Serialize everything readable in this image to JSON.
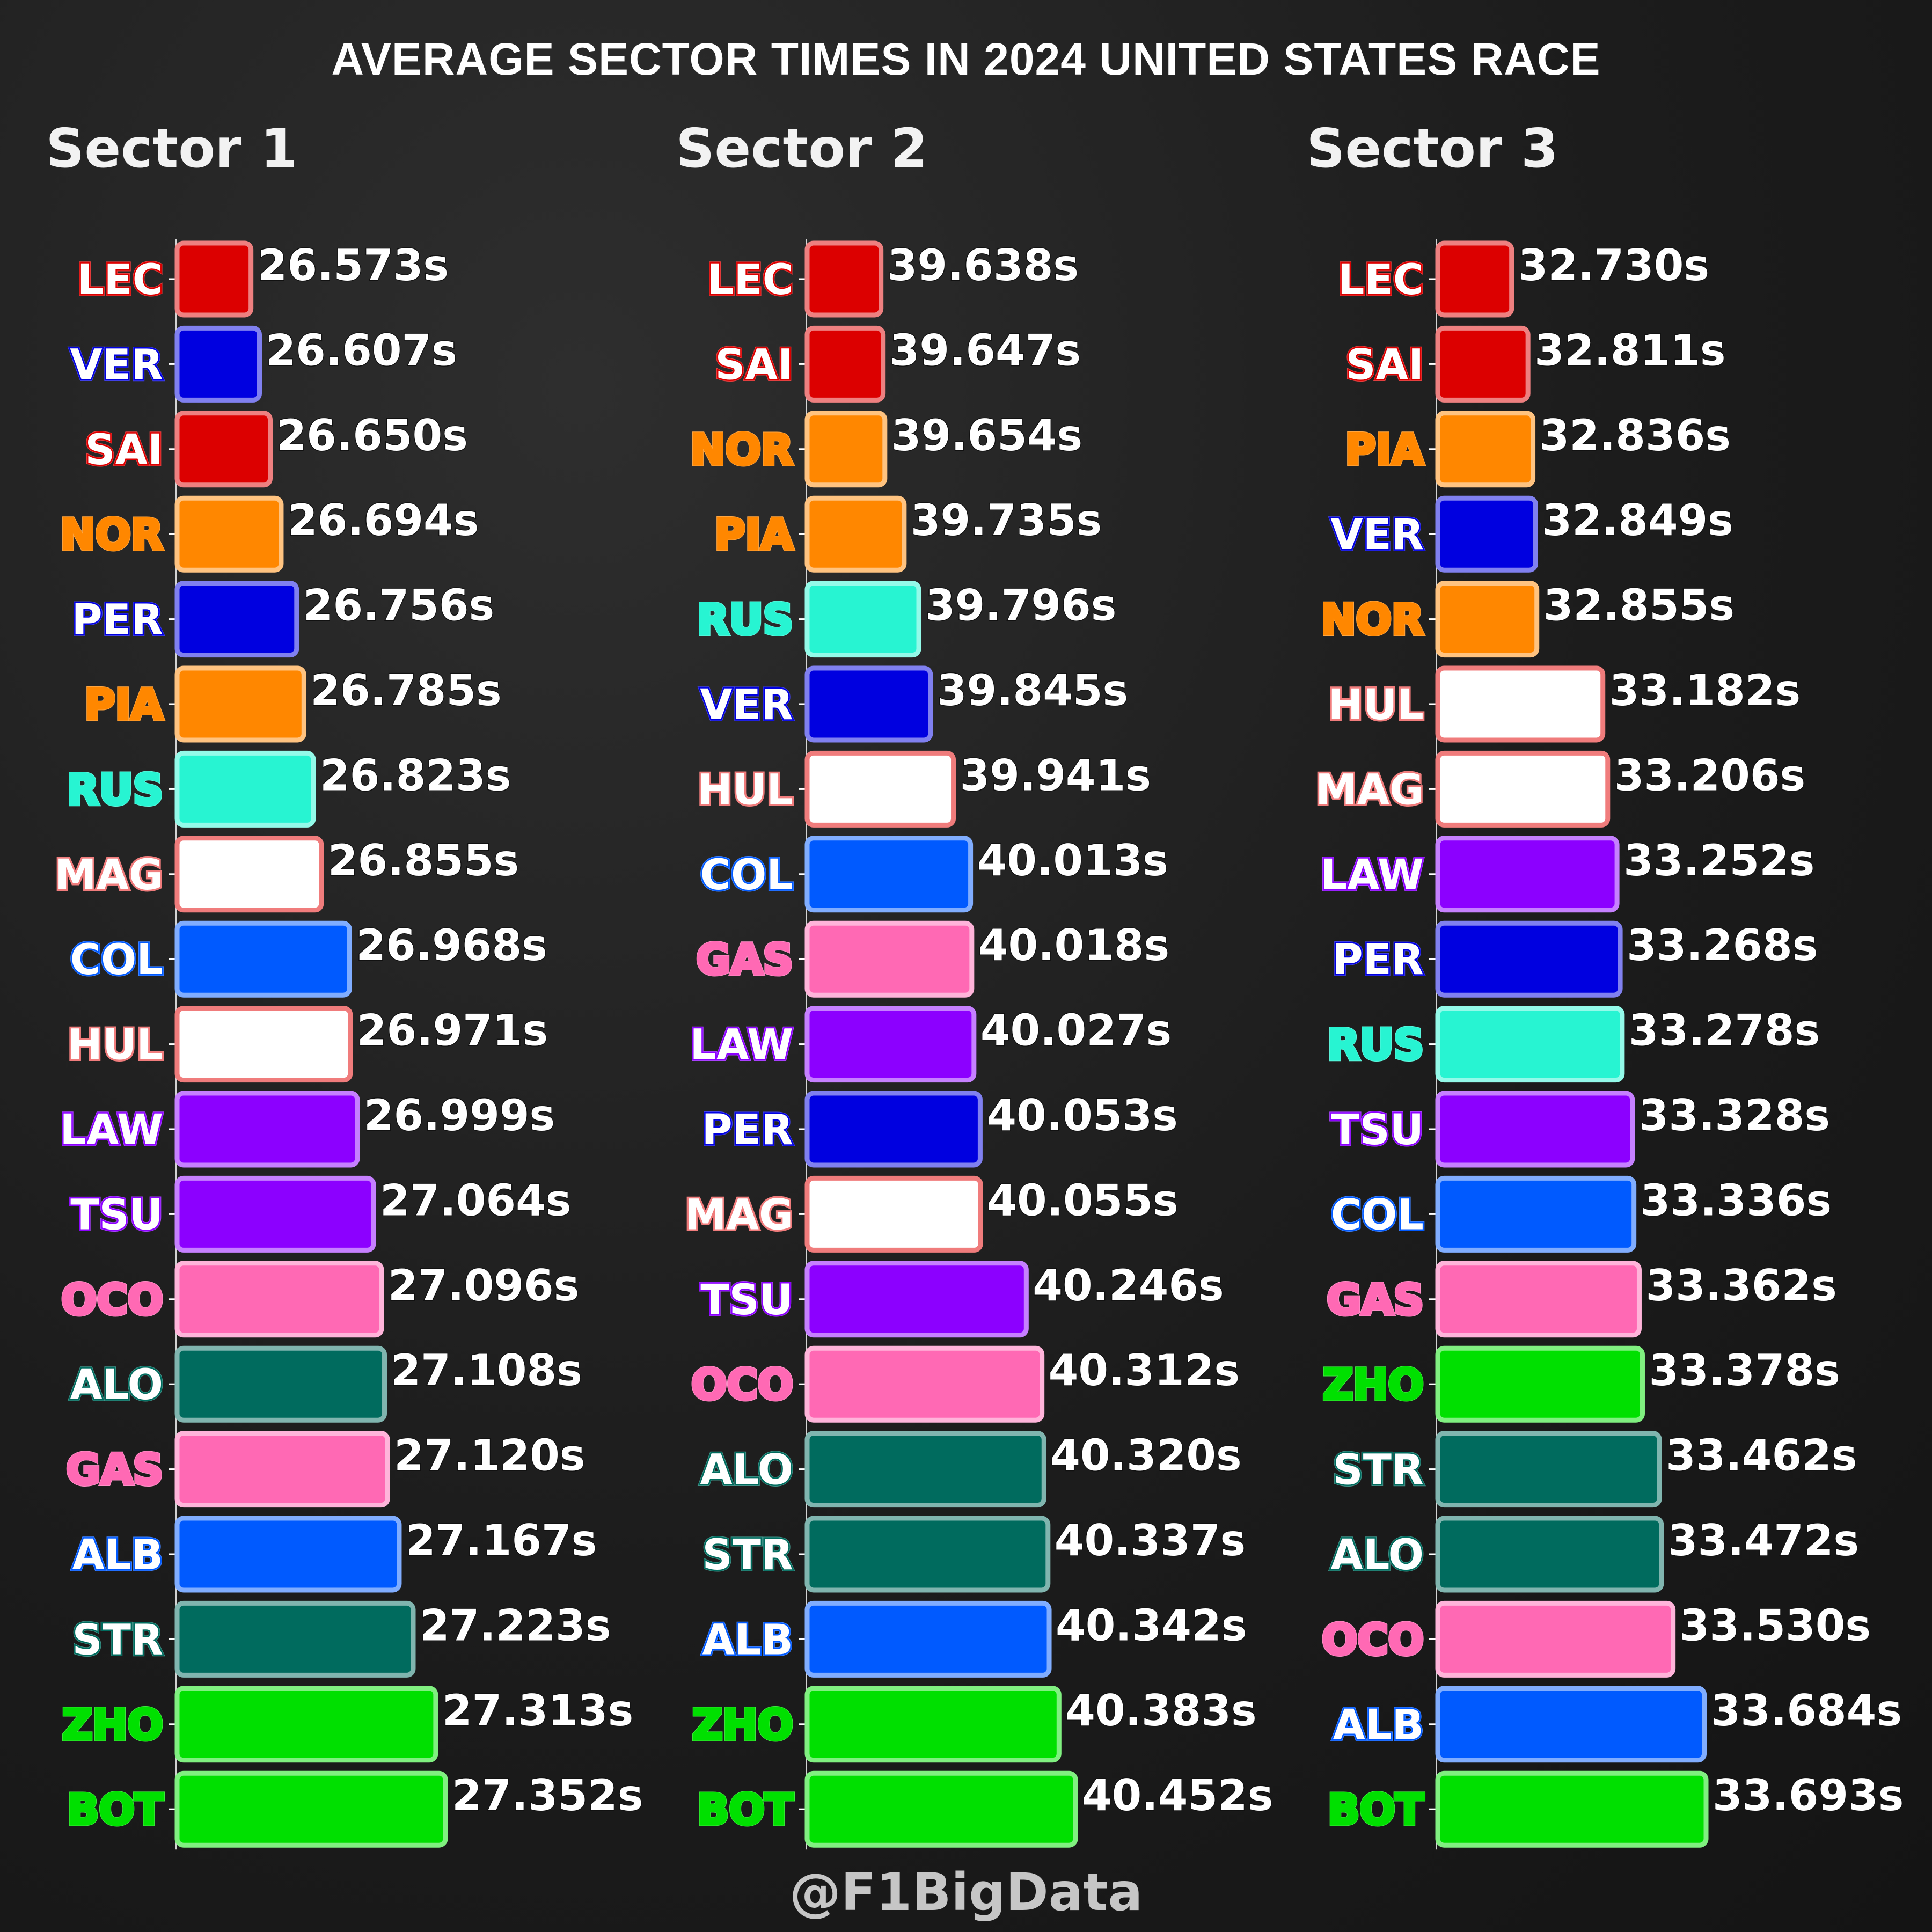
{
  "title": "AVERAGE SECTOR TIMES IN 2024 UNITED STATES RACE",
  "watermark": "@F1BigData",
  "team_colors": {
    "LEC": "#dc0000",
    "SAI": "#dc0000",
    "VER": "#0000e0",
    "PER": "#0000e0",
    "NOR": "#ff8700",
    "PIA": "#ff8700",
    "RUS": "#27f4d2",
    "HUL": "#ffffff",
    "MAG": "#ffffff",
    "COL": "#005aff",
    "ALB": "#005aff",
    "LAW": "#8c00ff",
    "TSU": "#8c00ff",
    "OCO": "#ff69b4",
    "GAS": "#ff69b4",
    "ALO": "#006b5e",
    "STR": "#006b5e",
    "ZHO": "#00e000",
    "BOT": "#00e000"
  },
  "chart_data": [
    {
      "type": "bar",
      "title": "Sector 1",
      "categories": [
        "LEC",
        "VER",
        "SAI",
        "NOR",
        "PER",
        "PIA",
        "RUS",
        "MAG",
        "COL",
        "HUL",
        "LAW",
        "TSU",
        "OCO",
        "ALO",
        "GAS",
        "ALB",
        "STR",
        "ZHO",
        "BOT"
      ],
      "values": [
        26.573,
        26.607,
        26.65,
        26.694,
        26.756,
        26.785,
        26.823,
        26.855,
        26.968,
        26.971,
        26.999,
        27.064,
        27.096,
        27.108,
        27.12,
        27.167,
        27.223,
        27.313,
        27.352
      ],
      "labels": [
        "26.573s",
        "26.607s",
        "26.650s",
        "26.694s",
        "26.756s",
        "26.785s",
        "26.823s",
        "26.855s",
        "26.968s",
        "26.971s",
        "26.999s",
        "27.064s",
        "27.096s",
        "27.108s",
        "27.120s",
        "27.167s",
        "27.223s",
        "27.313s",
        "27.352s"
      ]
    },
    {
      "type": "bar",
      "title": "Sector 2",
      "categories": [
        "LEC",
        "SAI",
        "NOR",
        "PIA",
        "RUS",
        "VER",
        "HUL",
        "COL",
        "GAS",
        "LAW",
        "PER",
        "MAG",
        "TSU",
        "OCO",
        "ALO",
        "STR",
        "ALB",
        "ZHO",
        "BOT"
      ],
      "values": [
        39.638,
        39.647,
        39.654,
        39.735,
        39.796,
        39.845,
        39.941,
        40.013,
        40.018,
        40.027,
        40.053,
        40.055,
        40.246,
        40.312,
        40.32,
        40.337,
        40.342,
        40.383,
        40.452
      ],
      "labels": [
        "39.638s",
        "39.647s",
        "39.654s",
        "39.735s",
        "39.796s",
        "39.845s",
        "39.941s",
        "40.013s",
        "40.018s",
        "40.027s",
        "40.053s",
        "40.055s",
        "40.246s",
        "40.312s",
        "40.320s",
        "40.337s",
        "40.342s",
        "40.383s",
        "40.452s"
      ]
    },
    {
      "type": "bar",
      "title": "Sector 3",
      "categories": [
        "LEC",
        "SAI",
        "PIA",
        "VER",
        "NOR",
        "HUL",
        "MAG",
        "LAW",
        "PER",
        "RUS",
        "TSU",
        "COL",
        "GAS",
        "ZHO",
        "STR",
        "ALO",
        "OCO",
        "ALB",
        "BOT"
      ],
      "values": [
        32.73,
        32.811,
        32.836,
        32.849,
        32.855,
        33.182,
        33.206,
        33.252,
        33.268,
        33.278,
        33.328,
        33.336,
        33.362,
        33.378,
        33.462,
        33.472,
        33.53,
        33.684,
        33.693
      ],
      "labels": [
        "32.730s",
        "32.811s",
        "32.836s",
        "32.849s",
        "32.855s",
        "33.182s",
        "33.206s",
        "33.252s",
        "33.268s",
        "33.278s",
        "33.328s",
        "33.336s",
        "33.362s",
        "33.378s",
        "33.462s",
        "33.472s",
        "33.530s",
        "33.684s",
        "33.693s"
      ]
    }
  ]
}
